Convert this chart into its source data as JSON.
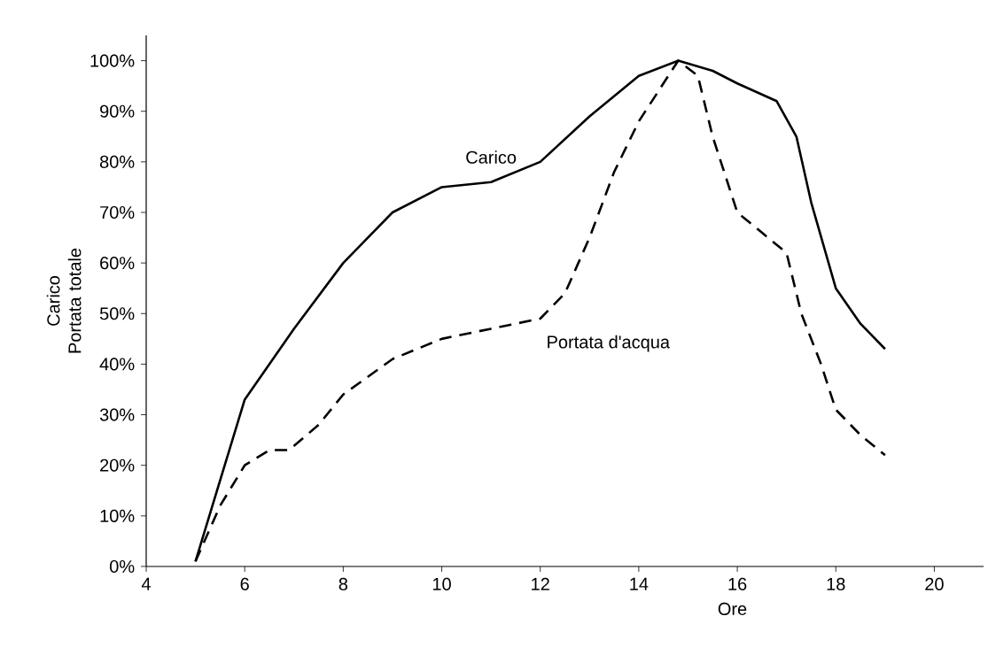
{
  "chart_data": {
    "type": "line",
    "xlabel": "Ore",
    "ylabel": "Carico Portata totale",
    "xlim": [
      4,
      21
    ],
    "ylim": [
      0,
      105
    ],
    "xticks": [
      4,
      6,
      8,
      10,
      12,
      14,
      16,
      18,
      20
    ],
    "yticks": [
      {
        "value": 0,
        "label": "0%"
      },
      {
        "value": 10,
        "label": "10%"
      },
      {
        "value": 20,
        "label": "20%"
      },
      {
        "value": 30,
        "label": "30%"
      },
      {
        "value": 40,
        "label": "40%"
      },
      {
        "value": 50,
        "label": "50%"
      },
      {
        "value": 60,
        "label": "60%"
      },
      {
        "value": 70,
        "label": "70%"
      },
      {
        "value": 80,
        "label": "80%"
      },
      {
        "value": 90,
        "label": "90%"
      },
      {
        "value": 100,
        "label": "100%"
      }
    ],
    "grid": false,
    "legend": false,
    "series": [
      {
        "name": "Carico",
        "color": "#000000",
        "line_style": "solid",
        "x": [
          5,
          6,
          7,
          8,
          9,
          10,
          11,
          12,
          13,
          14,
          14.8,
          15.5,
          16,
          16.8,
          17.2,
          17.5,
          18,
          18.5,
          19
        ],
        "values": [
          1,
          33,
          47,
          60,
          70,
          75,
          76,
          80,
          89,
          97,
          100,
          98,
          95.5,
          92,
          85,
          72,
          55,
          48,
          43
        ]
      },
      {
        "name": "Portata d'acqua",
        "color": "#000000",
        "line_style": "dashed",
        "x": [
          5,
          5.5,
          6,
          6.5,
          6.9,
          7.5,
          8,
          9,
          10,
          11,
          12,
          12.5,
          13,
          13.5,
          14,
          14.8,
          15.2,
          15.5,
          16,
          16.5,
          17,
          17.3,
          17.7,
          18,
          18.5,
          19
        ],
        "values": [
          1,
          12,
          20,
          23,
          23,
          28,
          34,
          41,
          45,
          47,
          49,
          54,
          65,
          78,
          88,
          100,
          97,
          85,
          70,
          66,
          62,
          50,
          40,
          31,
          26,
          22
        ]
      }
    ]
  }
}
